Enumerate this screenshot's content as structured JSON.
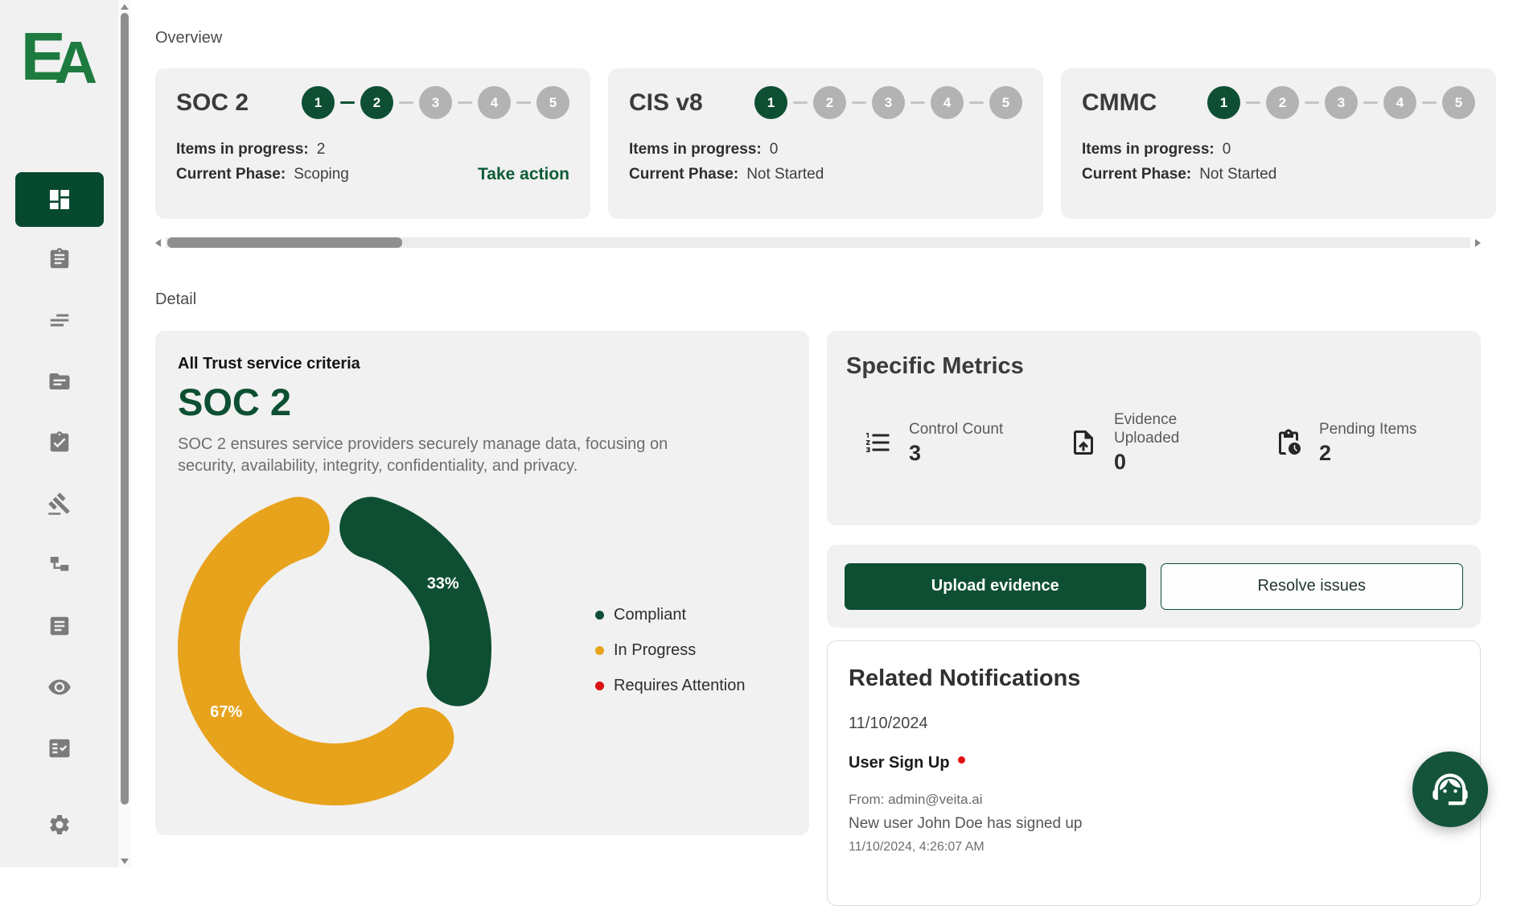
{
  "app": {
    "logo": {
      "e": "E",
      "a": "A"
    }
  },
  "colors": {
    "primary_green": "#0e4f33",
    "active_nav_green": "#07492e",
    "logo_green": "#1e7b3f",
    "accent_orange": "#e8a31c",
    "alert_red": "#dd1111",
    "fab_green": "#14543b",
    "card_bg": "#f1f1f1",
    "step_inactive": "#b3b3b3"
  },
  "sidebar": {
    "items": [
      {
        "id": "dashboard",
        "icon": "dashboard-icon",
        "active": true
      },
      {
        "id": "assignments",
        "icon": "clipboard-icon",
        "active": false
      },
      {
        "id": "sort",
        "icon": "sort-lines-icon",
        "active": false
      },
      {
        "id": "files",
        "icon": "folder-icon",
        "active": false
      },
      {
        "id": "tasks",
        "icon": "clipboard-check-icon",
        "active": false
      },
      {
        "id": "audit",
        "icon": "gavel-icon",
        "active": false
      },
      {
        "id": "integrations",
        "icon": "schema-icon",
        "active": false
      },
      {
        "id": "documents",
        "icon": "article-icon",
        "active": false
      },
      {
        "id": "monitoring",
        "icon": "eye-icon",
        "active": false
      },
      {
        "id": "review",
        "icon": "fact-check-icon",
        "active": false
      },
      {
        "id": "settings",
        "icon": "gear-icon",
        "active": false,
        "footer": true
      }
    ]
  },
  "overview": {
    "label": "Overview",
    "cards": [
      {
        "title": "SOC 2",
        "steps_total": 5,
        "steps_completed": 2,
        "items_label": "Items in progress:",
        "items_value": "2",
        "phase_label": "Current Phase:",
        "phase_value": "Scoping",
        "action_label": "Take action"
      },
      {
        "title": "CIS v8",
        "steps_total": 5,
        "steps_completed": 1,
        "items_label": "Items in progress:",
        "items_value": "0",
        "phase_label": "Current Phase:",
        "phase_value": "Not Started",
        "action_label": null
      },
      {
        "title": "CMMC",
        "steps_total": 5,
        "steps_completed": 1,
        "items_label": "Items in progress:",
        "items_value": "0",
        "phase_label": "Current Phase:",
        "phase_value": "Not Started",
        "action_label": null
      }
    ]
  },
  "detail": {
    "label": "Detail",
    "card": {
      "subtitle": "All Trust service criteria",
      "title": "SOC 2",
      "description": "SOC 2 ensures service providers securely manage data, focusing on security, availability, integrity, confidentiality, and privacy."
    }
  },
  "chart_data": {
    "type": "pie",
    "title": "All Trust service criteria — SOC 2 status",
    "donut": true,
    "labels": [
      "Compliant",
      "In Progress"
    ],
    "values": [
      33,
      67
    ],
    "data_labels": [
      "33%",
      "67%"
    ],
    "colors": [
      "#0e4f33",
      "#e8a31c"
    ],
    "legend": [
      {
        "label": "Compliant",
        "color": "#0e4f33"
      },
      {
        "label": "In Progress",
        "color": "#e8a31c"
      },
      {
        "label": "Requires Attention",
        "color": "#dd1111"
      }
    ],
    "legend_position": "right",
    "start_angle_deg": 0,
    "segment_gap_deg": 5,
    "inner_radius_ratio": 0.61
  },
  "metrics": {
    "title": "Specific Metrics",
    "items": [
      {
        "icon": "numbered-list-icon",
        "label": "Control Count",
        "value": "3",
        "wrap": false
      },
      {
        "icon": "upload-file-icon",
        "label": "Evidence Uploaded",
        "value": "0",
        "wrap": true
      },
      {
        "icon": "pending-actions-icon",
        "label": "Pending Items",
        "value": "2",
        "wrap": false
      }
    ]
  },
  "actions": {
    "primary": "Upload evidence",
    "secondary": "Resolve issues"
  },
  "notifications": {
    "title": "Related Notifications",
    "date_group": "11/10/2024",
    "items": [
      {
        "title": "User Sign Up",
        "unread": true,
        "from": "From: admin@veita.ai",
        "message": "New user John Doe has signed up",
        "timestamp": "11/10/2024, 4:26:07 AM"
      }
    ]
  }
}
